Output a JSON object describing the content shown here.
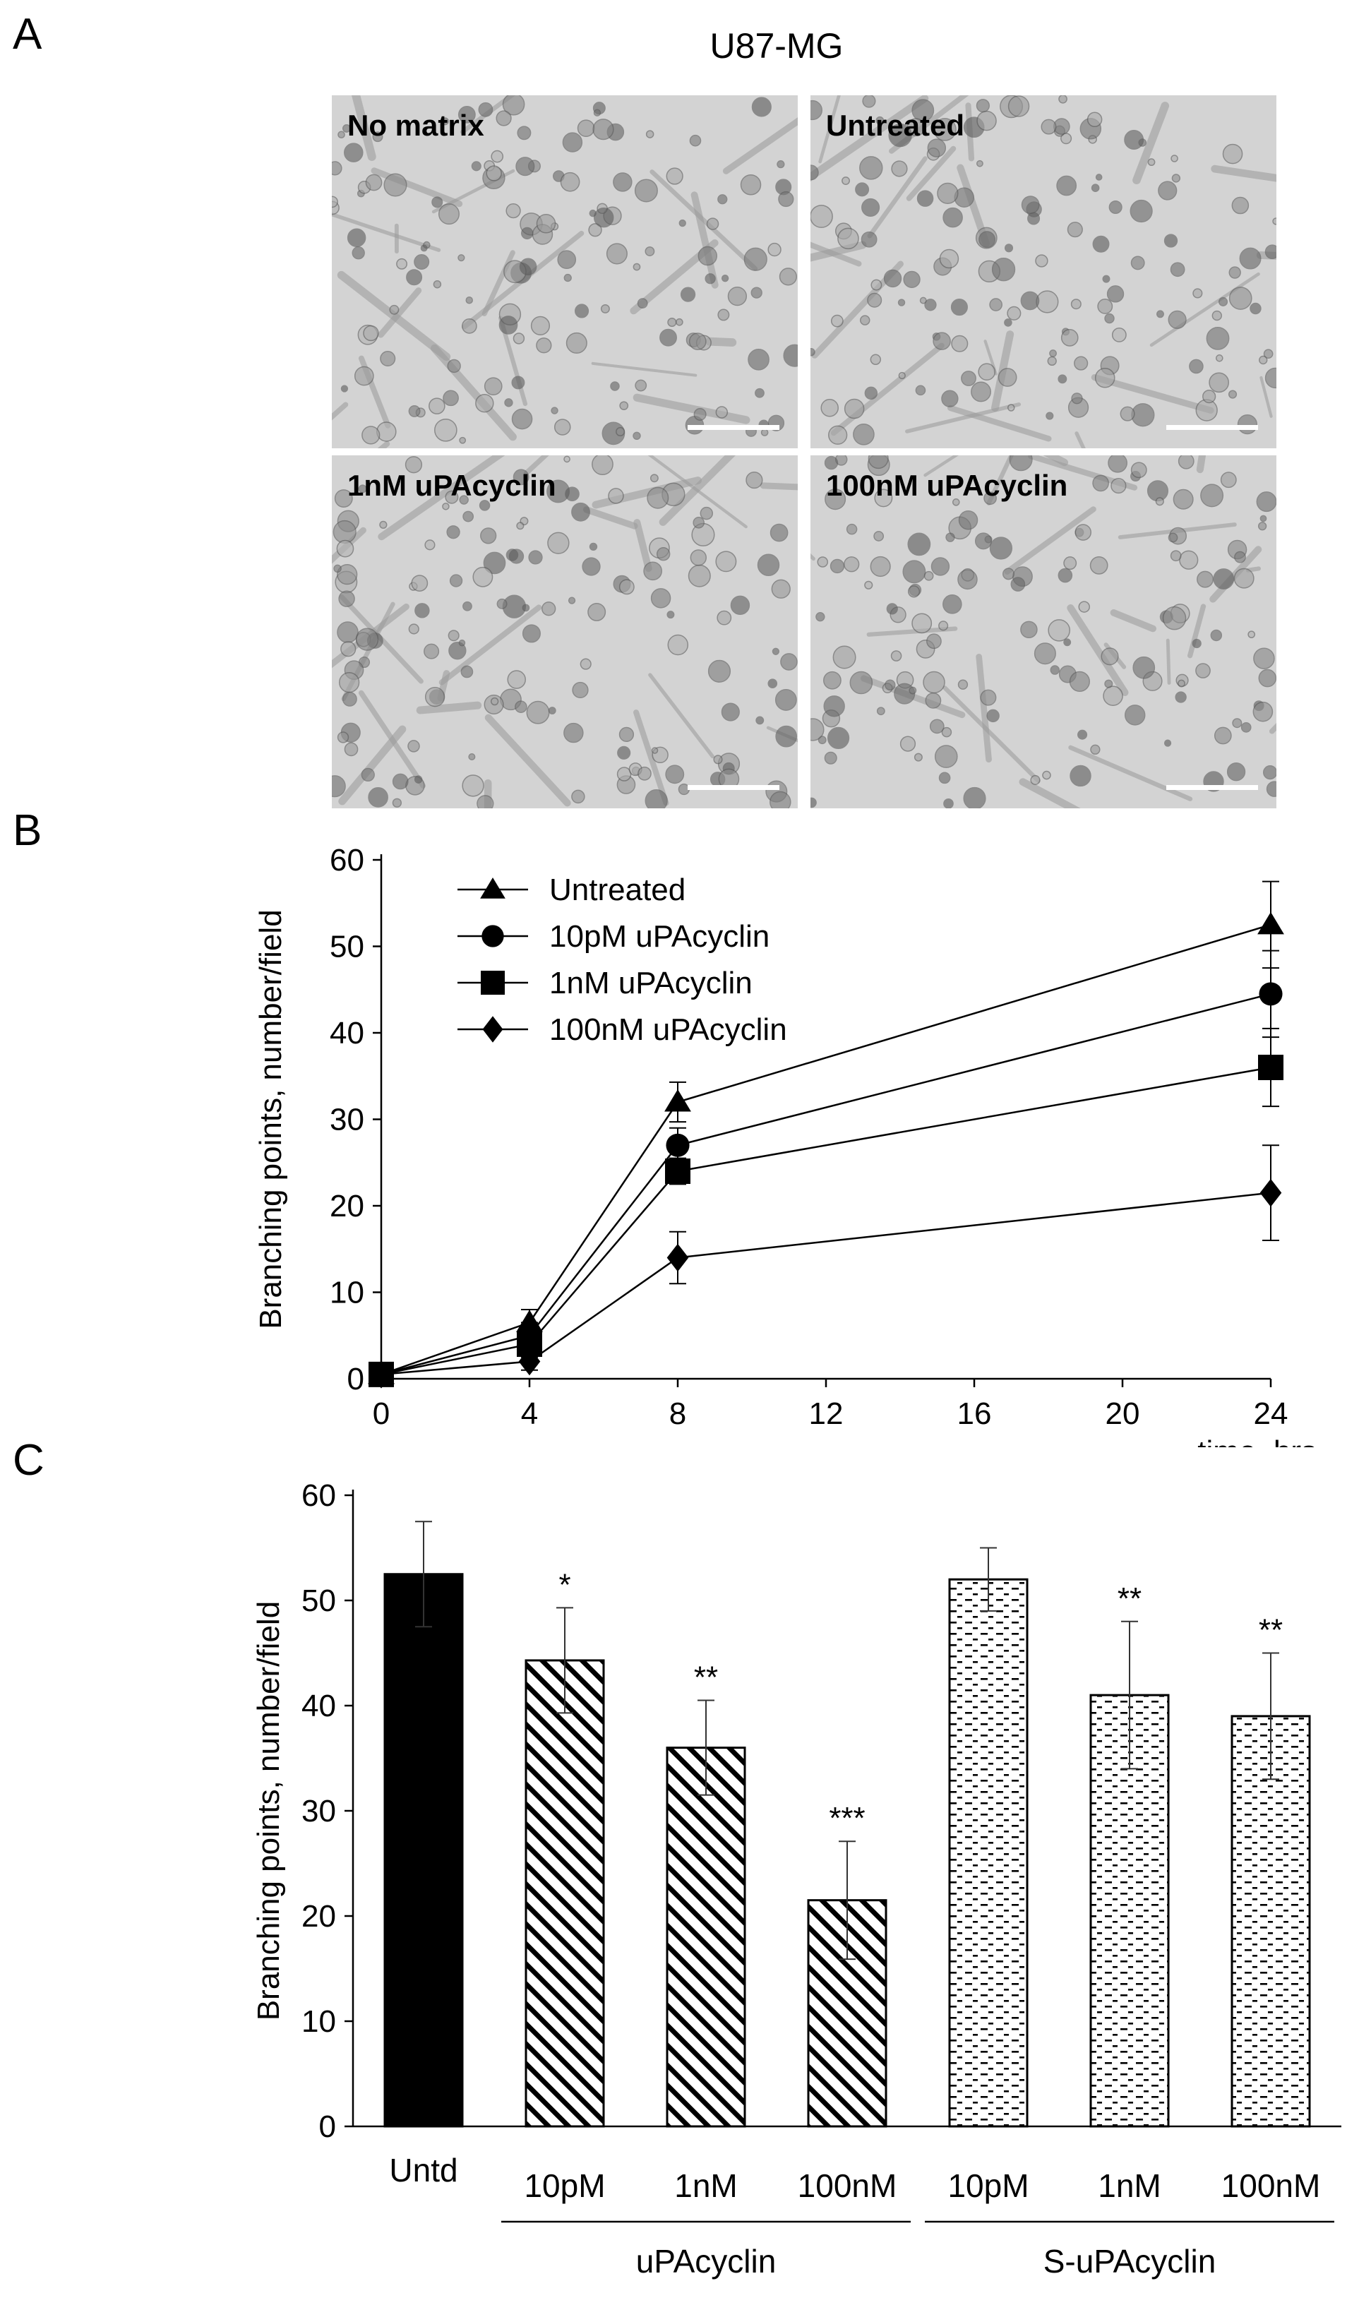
{
  "panel_labels": {
    "a": "A",
    "b": "B",
    "c": "C"
  },
  "panel_a": {
    "title": "U87-MG",
    "micrographs": [
      {
        "label": "No matrix"
      },
      {
        "label": "Untreated"
      },
      {
        "label": "1nM uPAcyclin"
      },
      {
        "label": "100nM uPAcyclin"
      }
    ]
  },
  "chart_data": [
    {
      "type": "line",
      "xlabel": "time, hrs",
      "ylabel": "Branching points, number/field",
      "xlim": [
        0,
        24
      ],
      "ylim": [
        0,
        60
      ],
      "x_ticks": [
        "0",
        "4",
        "8",
        "12",
        "16",
        "20",
        "24"
      ],
      "y_ticks": [
        "0",
        "10",
        "20",
        "30",
        "40",
        "50",
        "60"
      ],
      "x": [
        0,
        4,
        8,
        24
      ],
      "legend_position": "top-left",
      "series": [
        {
          "name": "Untreated",
          "marker": "triangle",
          "values": [
            0.5,
            6.5,
            32,
            52.5
          ],
          "errors": [
            0,
            1.5,
            2.3,
            5
          ]
        },
        {
          "name": "10pM uPAcyclin",
          "marker": "circle",
          "values": [
            0.5,
            5,
            27,
            44.5
          ],
          "errors": [
            0,
            1.5,
            2,
            5
          ]
        },
        {
          "name": "1nM uPAcyclin",
          "marker": "square",
          "values": [
            0.5,
            4,
            24,
            36
          ],
          "errors": [
            0,
            1.5,
            1.5,
            4.5
          ]
        },
        {
          "name": "100nM uPAcyclin",
          "marker": "diamond",
          "values": [
            0.5,
            2,
            14,
            21.5
          ],
          "errors": [
            0,
            1,
            3,
            5.5
          ]
        }
      ]
    },
    {
      "type": "bar",
      "ylabel": "Branching points, number/field",
      "ylim": [
        0,
        60
      ],
      "y_ticks": [
        "0",
        "10",
        "20",
        "30",
        "40",
        "50",
        "60"
      ],
      "categories": [
        "Untd",
        "10pM",
        "1nM",
        "100nM",
        "10pM",
        "1nM",
        "100nM"
      ],
      "values": [
        52.5,
        44.3,
        36,
        21.5,
        52,
        41,
        39
      ],
      "errors": [
        5,
        5,
        4.5,
        5.6,
        3,
        7,
        6
      ],
      "significance": [
        "",
        "*",
        "**",
        "***",
        "",
        "**",
        "**"
      ],
      "fill": [
        "solid",
        "hatched",
        "hatched",
        "hatched",
        "dashed",
        "dashed",
        "dashed"
      ],
      "groups": [
        {
          "label": "uPAcyclin",
          "members": [
            1,
            2,
            3
          ]
        },
        {
          "label": "S-uPAcyclin",
          "members": [
            4,
            5,
            6
          ]
        }
      ]
    }
  ]
}
